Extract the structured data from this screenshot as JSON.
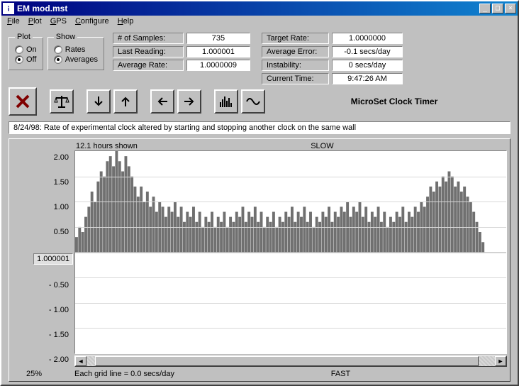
{
  "window": {
    "title": "EM mod.mst"
  },
  "menu": {
    "file": "File",
    "plot": "Plot",
    "gps": "GPS",
    "configure": "Configure",
    "help": "Help"
  },
  "plot_group": {
    "legend": "Plot",
    "on": "On",
    "off": "Off",
    "selected": "off"
  },
  "show_group": {
    "legend": "Show",
    "rates": "Rates",
    "averages": "Averages",
    "selected": "averages"
  },
  "readings": {
    "num_samples_label": "# of Samples:",
    "num_samples": "735",
    "last_reading_label": "Last Reading:",
    "last_reading": "1.000001",
    "average_rate_label": "Average Rate:",
    "average_rate": "1.0000009"
  },
  "targets": {
    "target_rate_label": "Target Rate:",
    "target_rate": "1.0000000",
    "average_error_label": "Average Error:",
    "average_error": "-0.1 secs/day",
    "instability_label": "Instability:",
    "instability": "0 secs/day",
    "current_time_label": "Current Time:",
    "current_time": "9:47:26 AM"
  },
  "brand": "MicroSet Clock Timer",
  "status": "8/24/98: Rate of experimental clock altered by starting and stopping another clock on the same wall",
  "chart": {
    "hours_shown": "12.1 hours shown",
    "slow": "SLOW",
    "fast": "FAST",
    "pct": "25%",
    "grid_note": "Each grid line = 0.0 secs/day",
    "center_label": "1.000001",
    "yticks": [
      "2.00",
      "1.50",
      "1.00",
      "0.50",
      "- 0.50",
      "- 1.00",
      "- 1.50",
      "- 2.00"
    ],
    "background": "#ffffff",
    "grid_color": "#d8d8d8",
    "bar_color": "#707070",
    "ylim": [
      -2,
      2
    ],
    "series": [
      0.3,
      0.5,
      0.4,
      0.7,
      0.9,
      1.2,
      1.0,
      1.4,
      1.6,
      1.5,
      1.8,
      1.9,
      1.7,
      2.0,
      1.8,
      1.6,
      1.9,
      1.7,
      1.5,
      1.3,
      1.1,
      1.3,
      1.0,
      1.2,
      0.9,
      1.1,
      0.8,
      1.0,
      0.9,
      0.7,
      0.9,
      0.8,
      1.0,
      0.7,
      0.9,
      0.6,
      0.8,
      0.7,
      0.9,
      0.6,
      0.8,
      0.5,
      0.7,
      0.6,
      0.8,
      0.5,
      0.7,
      0.6,
      0.8,
      0.5,
      0.7,
      0.6,
      0.8,
      0.7,
      0.9,
      0.6,
      0.8,
      0.7,
      0.9,
      0.6,
      0.8,
      0.5,
      0.7,
      0.6,
      0.8,
      0.5,
      0.7,
      0.6,
      0.8,
      0.7,
      0.9,
      0.6,
      0.8,
      0.7,
      0.9,
      0.6,
      0.8,
      0.5,
      0.7,
      0.6,
      0.8,
      0.7,
      0.9,
      0.6,
      0.8,
      0.7,
      0.9,
      0.8,
      1.0,
      0.7,
      0.9,
      0.8,
      1.0,
      0.7,
      0.9,
      0.6,
      0.8,
      0.7,
      0.9,
      0.6,
      0.8,
      0.5,
      0.7,
      0.6,
      0.8,
      0.7,
      0.9,
      0.6,
      0.8,
      0.7,
      0.9,
      0.8,
      1.0,
      0.9,
      1.1,
      1.3,
      1.2,
      1.4,
      1.3,
      1.5,
      1.4,
      1.6,
      1.5,
      1.3,
      1.4,
      1.2,
      1.3,
      1.1,
      1.0,
      0.8,
      0.6,
      0.4,
      0.2,
      0.0,
      0.0,
      0.0,
      0.0,
      0.0,
      0.0,
      0.0
    ],
    "scroll": {
      "thumb_left_pct": 2,
      "thumb_width_pct": 94
    }
  }
}
